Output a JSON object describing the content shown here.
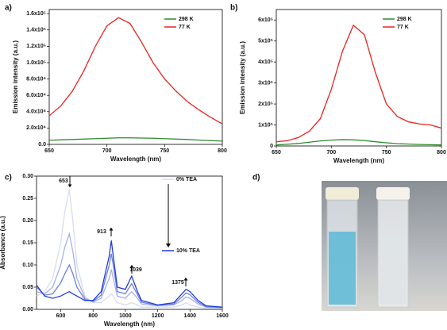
{
  "panel_labels": [
    "a)",
    "b)",
    "c)",
    "d)"
  ],
  "chart_data": [
    {
      "type": "line",
      "xlabel": "Wavelength (nm)",
      "ylabel": "Emission intensity (a.u.)",
      "x": [
        650,
        660,
        670,
        680,
        690,
        700,
        710,
        720,
        730,
        740,
        750,
        760,
        770,
        780,
        790,
        800
      ],
      "series": [
        {
          "name": "298 K",
          "color": "#2e8b2e",
          "values": [
            5000,
            5500,
            6000,
            6500,
            7000,
            7500,
            8000,
            8000,
            7800,
            7500,
            7000,
            6500,
            6000,
            5200,
            4600,
            4000
          ]
        },
        {
          "name": "77 K",
          "color": "#e8231f",
          "values": [
            35000,
            47000,
            65000,
            90000,
            120000,
            145000,
            155000,
            148000,
            125000,
            100000,
            80000,
            65000,
            52000,
            42000,
            33000,
            25000
          ]
        }
      ],
      "xlim": [
        650,
        800
      ],
      "xticks": [
        650,
        700,
        750,
        800
      ],
      "ylim": [
        0,
        165000
      ],
      "yticks": [
        {
          "value": 0,
          "label": "0.0"
        },
        {
          "value": 20000,
          "label": "2.0x10⁴"
        },
        {
          "value": 40000,
          "label": "4.0x10⁴"
        },
        {
          "value": 60000,
          "label": "6.0x10⁴"
        },
        {
          "value": 80000,
          "label": "8.0x10⁴"
        },
        {
          "value": 100000,
          "label": "1.0x10⁵"
        },
        {
          "value": 120000,
          "label": "1.2x10⁵"
        },
        {
          "value": 140000,
          "label": "1.4x10⁵"
        },
        {
          "value": 160000,
          "label": "1.6x10⁵"
        }
      ],
      "legend": "upper right"
    },
    {
      "type": "line",
      "xlabel": "Wavelength (nm)",
      "ylabel": "Emission intensity (a.u.)",
      "x": [
        650,
        660,
        670,
        680,
        690,
        700,
        710,
        720,
        730,
        740,
        750,
        760,
        770,
        780,
        790,
        800
      ],
      "series": [
        {
          "name": "298 K",
          "color": "#2e8b2e",
          "values": [
            5000,
            8000,
            12000,
            18000,
            24000,
            28000,
            30000,
            29000,
            26000,
            20000,
            15000,
            11000,
            9000,
            7000,
            6000,
            5000
          ]
        },
        {
          "name": "77 K",
          "color": "#e8231f",
          "values": [
            20000,
            25000,
            40000,
            70000,
            130000,
            270000,
            450000,
            575000,
            530000,
            350000,
            200000,
            140000,
            115000,
            105000,
            100000,
            85000
          ]
        }
      ],
      "xlim": [
        650,
        800
      ],
      "xticks": [
        650,
        700,
        750,
        800
      ],
      "ylim": [
        0,
        650000
      ],
      "yticks": [
        0,
        {
          "value": 100000,
          "label": "1x10⁵"
        },
        {
          "value": 200000,
          "label": "2x10⁵"
        },
        {
          "value": 300000,
          "label": "3x10⁵"
        },
        {
          "value": 400000,
          "label": "4x10⁵"
        },
        {
          "value": 500000,
          "label": "5x10⁵"
        },
        {
          "value": 600000,
          "label": "6x10⁵"
        }
      ],
      "legend": "upper right"
    },
    {
      "type": "line",
      "xlabel": "Wavelength (nm)",
      "ylabel": "Absorbance (a.u.)",
      "x": [
        450,
        500,
        550,
        600,
        625,
        653,
        675,
        700,
        750,
        800,
        850,
        900,
        913,
        925,
        950,
        1000,
        1039,
        1075,
        1100,
        1200,
        1300,
        1350,
        1375,
        1400,
        1450,
        1500,
        1600
      ],
      "series": [
        {
          "name": "0% TEA",
          "color": "#d6dcf5",
          "values": [
            0.03,
            0.04,
            0.07,
            0.15,
            0.22,
            0.27,
            0.2,
            0.1,
            0.03,
            0.015,
            0.015,
            0.03,
            0.035,
            0.03,
            0.015,
            0.01,
            0.015,
            0.01,
            0.005,
            0.005,
            0.005,
            0.01,
            0.015,
            0.01,
            0.005,
            0.002,
            0.002
          ]
        },
        {
          "color": "#a5b0ea",
          "values": [
            0.04,
            0.035,
            0.05,
            0.1,
            0.14,
            0.17,
            0.13,
            0.07,
            0.025,
            0.017,
            0.025,
            0.07,
            0.09,
            0.07,
            0.03,
            0.025,
            0.04,
            0.025,
            0.012,
            0.008,
            0.01,
            0.02,
            0.028,
            0.025,
            0.012,
            0.005,
            0.004
          ]
        },
        {
          "color": "#6f7fe0",
          "values": [
            0.05,
            0.032,
            0.035,
            0.06,
            0.08,
            0.1,
            0.08,
            0.05,
            0.022,
            0.018,
            0.032,
            0.1,
            0.125,
            0.1,
            0.04,
            0.035,
            0.058,
            0.033,
            0.016,
            0.009,
            0.012,
            0.028,
            0.037,
            0.033,
            0.016,
            0.006,
            0.0045
          ]
        },
        {
          "name": "10% TEA",
          "color": "#1f3fd6",
          "values": [
            0.055,
            0.03,
            0.025,
            0.03,
            0.035,
            0.04,
            0.035,
            0.03,
            0.02,
            0.02,
            0.04,
            0.12,
            0.155,
            0.12,
            0.05,
            0.045,
            0.075,
            0.04,
            0.02,
            0.01,
            0.015,
            0.035,
            0.045,
            0.04,
            0.02,
            0.008,
            0.005
          ]
        }
      ],
      "xlim": [
        450,
        1600
      ],
      "xticks": [
        600,
        800,
        1000,
        1200,
        1400,
        1600
      ],
      "ylim": [
        0,
        0.3
      ],
      "yticks": [
        {
          "value": 0,
          "label": "0.00"
        },
        {
          "value": 0.05,
          "label": "0.05"
        },
        {
          "value": 0.1,
          "label": "0.10"
        },
        {
          "value": 0.15,
          "label": "0.15"
        },
        {
          "value": 0.2,
          "label": "0.20"
        },
        {
          "value": 0.25,
          "label": "0.25"
        },
        {
          "value": 0.3,
          "label": "0.30"
        }
      ],
      "annotations": [
        "653",
        "913",
        "1039",
        "1375"
      ],
      "legend": "upper right"
    }
  ]
}
